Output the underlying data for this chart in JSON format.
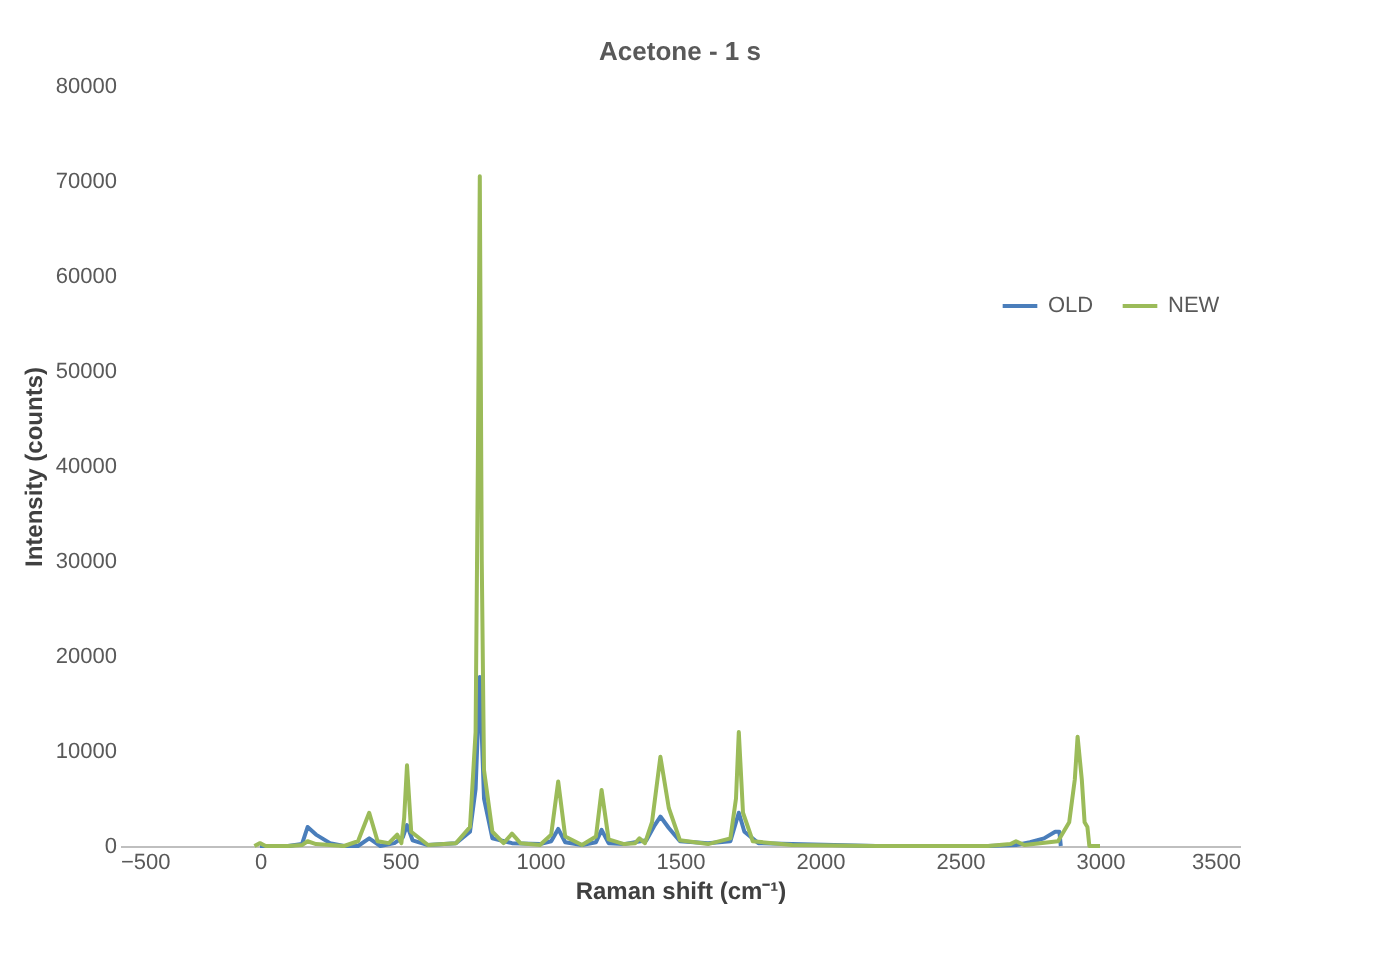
{
  "chart_data": {
    "type": "line",
    "title": "Acetone - 1 s",
    "xlabel": "Raman shift (cm⁻¹)",
    "ylabel": "Intensity (counts)",
    "xlim": [
      -500,
      3500
    ],
    "xticks": [
      -500,
      0,
      500,
      1000,
      1500,
      2000,
      2500,
      3000,
      3500
    ],
    "ylim": [
      0,
      80000
    ],
    "yticks": [
      0,
      10000,
      20000,
      30000,
      40000,
      50000,
      60000,
      70000,
      80000
    ],
    "grid": false,
    "legend": "right",
    "marker": "none",
    "line_style": "solid",
    "series": [
      {
        "name": "OLD",
        "color": "#4a7ebb",
        "x": [
          0,
          100,
          150,
          170,
          200,
          250,
          300,
          350,
          390,
          430,
          480,
          510,
          525,
          545,
          600,
          700,
          750,
          770,
          785,
          800,
          830,
          900,
          1000,
          1040,
          1065,
          1090,
          1150,
          1200,
          1220,
          1245,
          1300,
          1380,
          1410,
          1430,
          1460,
          1500,
          1600,
          1680,
          1700,
          1710,
          1730,
          1780,
          1900,
          2200,
          2600,
          2700,
          2750,
          2800,
          2840,
          2855,
          2860
        ],
        "values": [
          0,
          0,
          200,
          2000,
          1200,
          300,
          0,
          0,
          800,
          0,
          300,
          900,
          2200,
          600,
          100,
          300,
          1500,
          6000,
          17800,
          5000,
          800,
          300,
          200,
          500,
          1800,
          400,
          100,
          400,
          1700,
          300,
          200,
          600,
          2200,
          3100,
          1900,
          500,
          300,
          500,
          2500,
          3500,
          1500,
          300,
          200,
          0,
          0,
          100,
          400,
          800,
          1500,
          1500,
          0
        ]
      },
      {
        "name": "NEW",
        "color": "#9bbb59",
        "x": [
          -20,
          0,
          20,
          100,
          150,
          170,
          200,
          300,
          350,
          390,
          420,
          460,
          490,
          505,
          515,
          525,
          540,
          600,
          700,
          750,
          770,
          778,
          785,
          792,
          800,
          830,
          870,
          900,
          930,
          1000,
          1040,
          1065,
          1090,
          1150,
          1200,
          1220,
          1245,
          1300,
          1340,
          1355,
          1375,
          1400,
          1430,
          1460,
          1500,
          1600,
          1680,
          1700,
          1710,
          1725,
          1760,
          1900,
          2200,
          2600,
          2680,
          2700,
          2730,
          2850,
          2890,
          2910,
          2920,
          2935,
          2945,
          2955,
          2962,
          3000
        ],
        "values": [
          0,
          300,
          0,
          0,
          100,
          500,
          200,
          0,
          500,
          3500,
          500,
          300,
          1200,
          300,
          3000,
          8500,
          1500,
          100,
          300,
          2000,
          12000,
          40000,
          70500,
          30000,
          8000,
          1500,
          300,
          1300,
          300,
          100,
          1200,
          6800,
          1000,
          100,
          1000,
          5900,
          700,
          200,
          300,
          800,
          300,
          2500,
          9400,
          4000,
          600,
          200,
          800,
          5000,
          12000,
          3500,
          500,
          100,
          0,
          0,
          200,
          500,
          100,
          500,
          2500,
          7000,
          11500,
          7000,
          2500,
          2000,
          0,
          0
        ]
      }
    ]
  }
}
